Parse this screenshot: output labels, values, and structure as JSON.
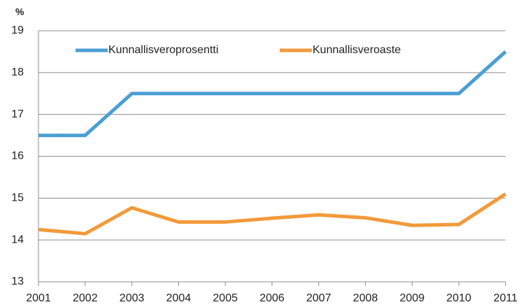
{
  "chart_data": {
    "type": "line",
    "y_label": "%",
    "categories": [
      "2001",
      "2002",
      "2003",
      "2004",
      "2005",
      "2006",
      "2007",
      "2008",
      "2009",
      "2010",
      "2011"
    ],
    "series": [
      {
        "name": "Kunnallisveroprosentti",
        "color": "#4a9fd4",
        "values": [
          16.5,
          16.5,
          17.5,
          17.5,
          17.5,
          17.5,
          17.5,
          17.5,
          17.5,
          17.5,
          18.5
        ]
      },
      {
        "name": "Kunnallisveroaste",
        "color": "#f29a3a",
        "values": [
          14.25,
          14.15,
          14.77,
          14.43,
          14.43,
          14.52,
          14.6,
          14.53,
          14.35,
          14.37,
          15.1
        ]
      }
    ],
    "ylim": [
      13,
      19
    ],
    "yticks": [
      13,
      14,
      15,
      16,
      17,
      18,
      19
    ],
    "grid": true
  }
}
